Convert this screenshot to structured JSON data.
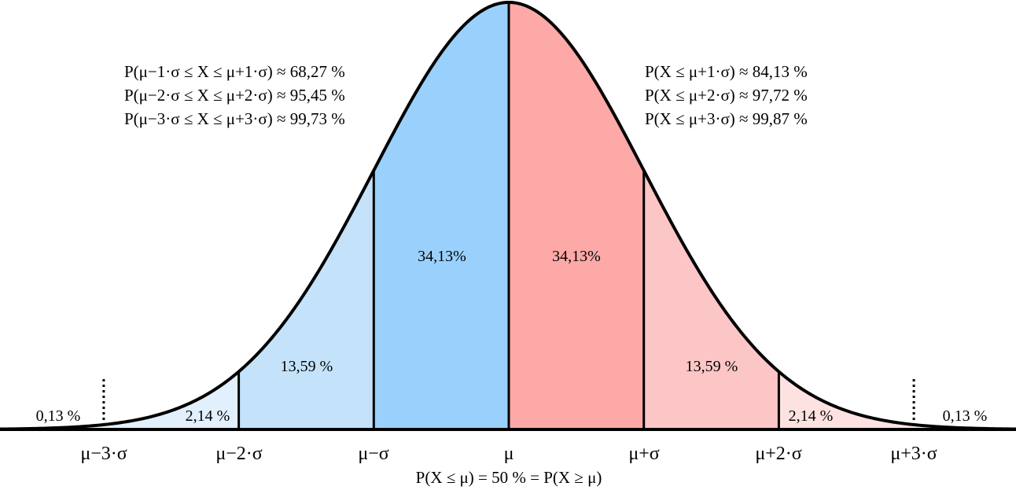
{
  "chart_data": {
    "type": "area",
    "title": "",
    "distribution": "normal",
    "mean_label": "μ",
    "x_range_sigma": [
      -3.75,
      3.75
    ],
    "regions": [
      {
        "name": "left-tail",
        "from": -4.5,
        "to": -3,
        "percent_label": "0,13 %",
        "color": "#eaf4fd"
      },
      {
        "name": "left-2-3",
        "from": -3,
        "to": -2,
        "percent_label": "2,14 %",
        "color": "#e1f0fc"
      },
      {
        "name": "left-1-2",
        "from": -2,
        "to": -1,
        "percent_label": "13,59 %",
        "color": "#c4e3fa"
      },
      {
        "name": "left-0-1",
        "from": -1,
        "to": 0,
        "percent_label": "34,13%",
        "color": "#99d1fc"
      },
      {
        "name": "right-0-1",
        "from": 0,
        "to": 1,
        "percent_label": "34,13%",
        "color": "#fda9a8"
      },
      {
        "name": "right-1-2",
        "from": 1,
        "to": 2,
        "percent_label": "13,59 %",
        "color": "#fbc6c5"
      },
      {
        "name": "right-2-3",
        "from": 2,
        "to": 3,
        "percent_label": "2,14 %",
        "color": "#fde2e1"
      },
      {
        "name": "right-tail",
        "from": 3,
        "to": 4.5,
        "percent_label": "0,13 %",
        "color": "#feeceb"
      }
    ],
    "x_tick_labels": [
      "μ−3·σ",
      "μ−2·σ",
      "μ−σ",
      "μ",
      "μ+σ",
      "μ+2·σ",
      "μ+3·σ"
    ],
    "x_tick_values": [
      -3,
      -2,
      -1,
      0,
      1,
      2,
      3
    ]
  },
  "annotations": {
    "left": [
      "P(μ−1·σ ≤ X ≤ μ+1·σ) ≈ 68,27 %",
      "P(μ−2·σ ≤ X ≤ μ+2·σ) ≈ 95,45 %",
      "P(μ−3·σ ≤ X ≤ μ+3·σ) ≈ 99,73 %"
    ],
    "right": [
      "P(X ≤ μ+1·σ) ≈ 84,13 %",
      "P(X ≤ μ+2·σ) ≈ 97,72 %",
      "P(X ≤ μ+3·σ) ≈ 99,87 %"
    ],
    "bottom": "P(X ≤ μ) = 50 % = P(X ≥ μ)"
  }
}
